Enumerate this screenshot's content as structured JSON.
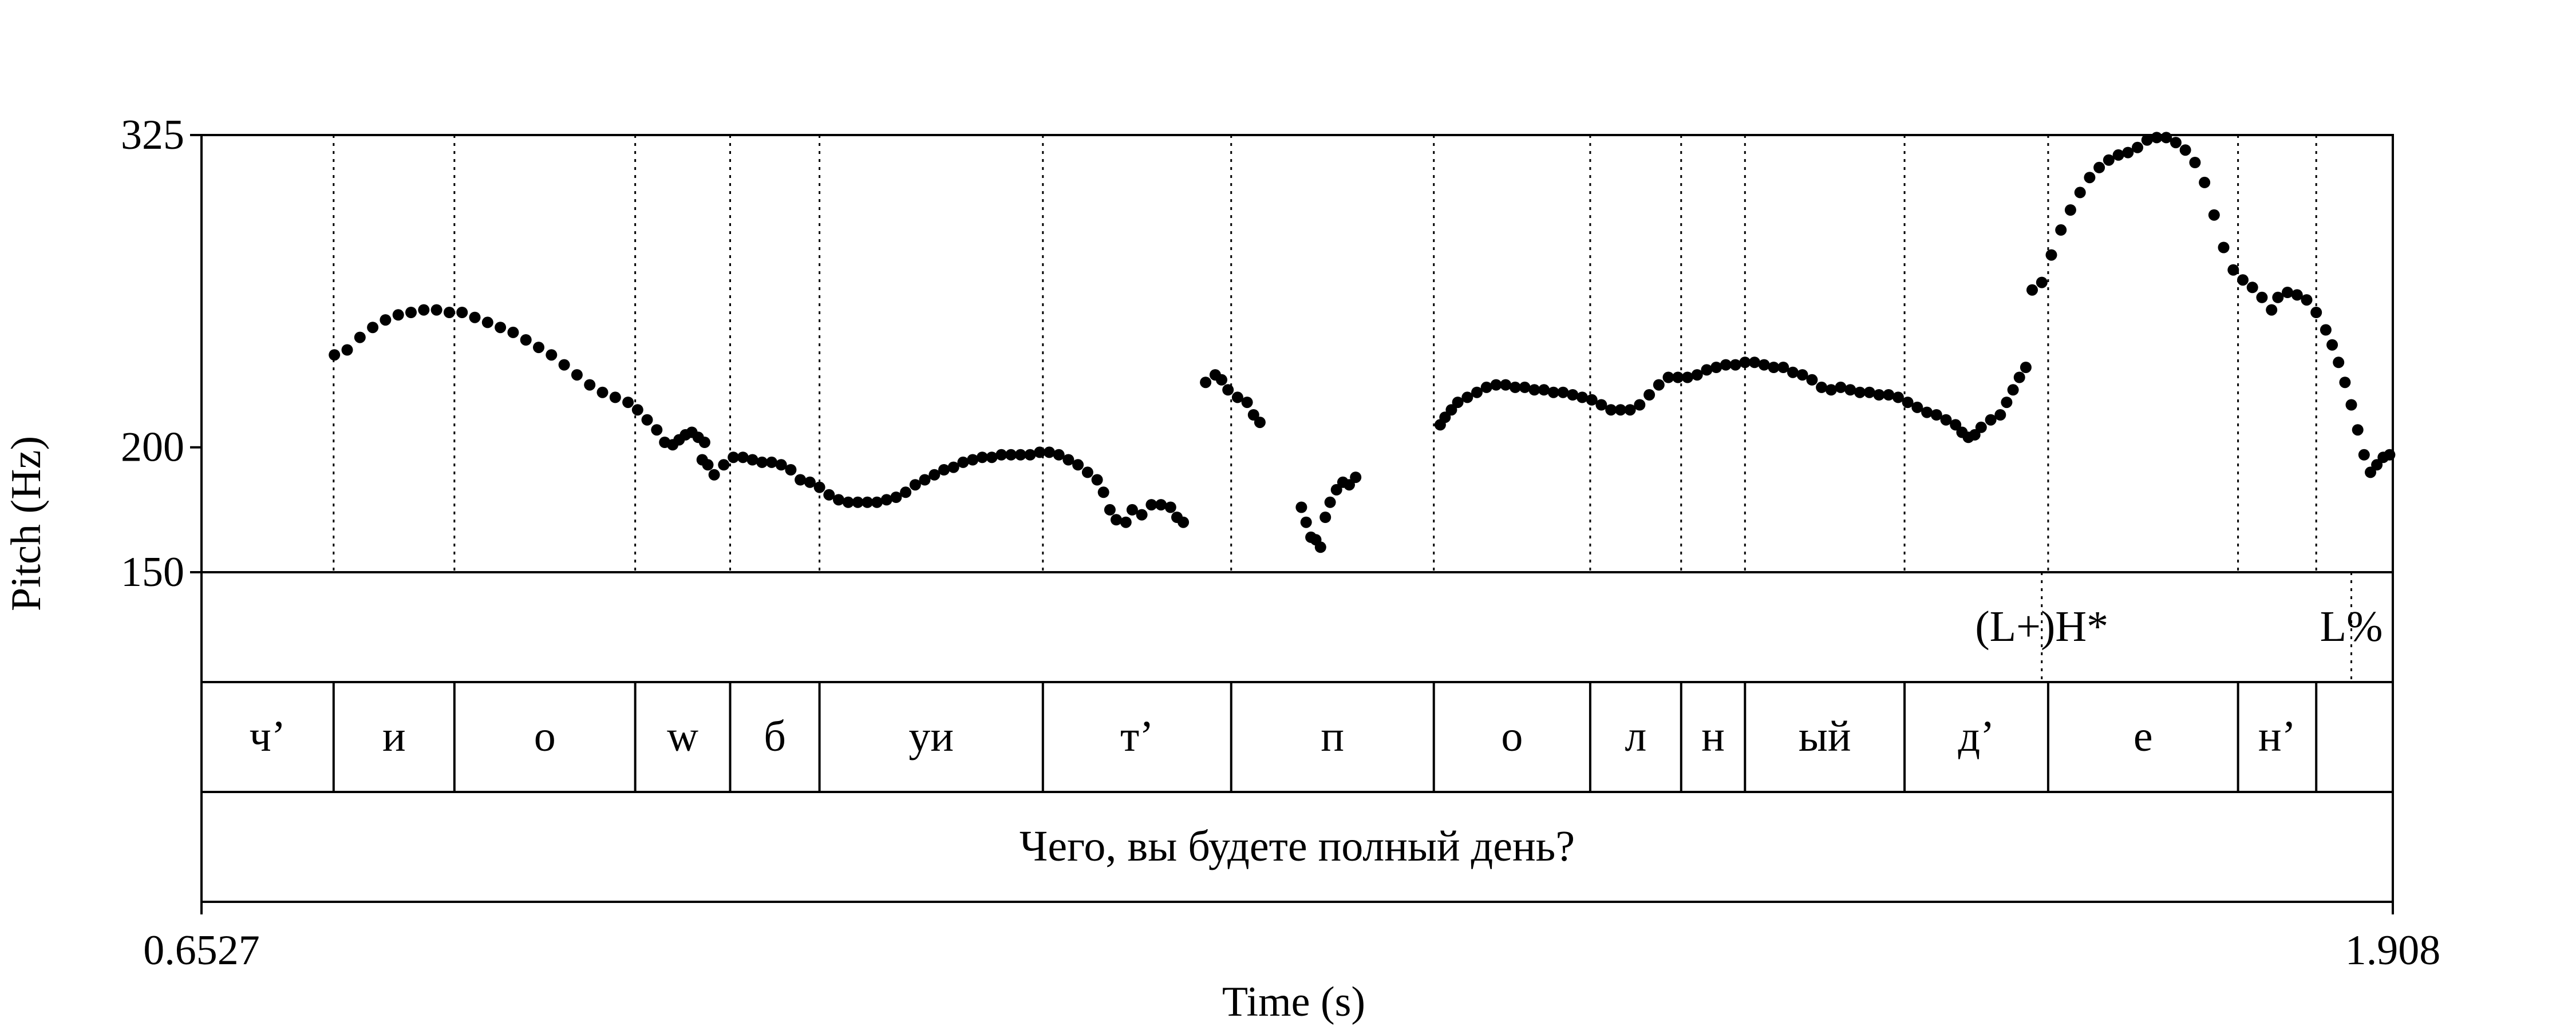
{
  "chart_data": {
    "type": "scatter",
    "title": "",
    "xlabel": "Time (s)",
    "ylabel": "Pitch (Hz)",
    "xlim": [
      0.6527,
      1.908
    ],
    "ylim": [
      150,
      325
    ],
    "x_tick_labels": [
      "0.6527",
      "1.908"
    ],
    "y_ticks": [
      150,
      200,
      325
    ],
    "y_tick_labels": [
      "150",
      "200",
      "325"
    ],
    "grid": false,
    "pitch_segments": [
      [
        [
          0.736,
          237
        ],
        [
          0.744,
          239
        ],
        [
          0.752,
          244
        ],
        [
          0.76,
          248
        ],
        [
          0.768,
          251
        ],
        [
          0.776,
          253
        ],
        [
          0.784,
          254
        ],
        [
          0.792,
          255
        ],
        [
          0.8,
          255
        ],
        [
          0.808,
          254
        ],
        [
          0.816,
          254
        ],
        [
          0.824,
          252
        ],
        [
          0.832,
          250
        ],
        [
          0.84,
          248
        ],
        [
          0.848,
          246
        ],
        [
          0.856,
          243
        ],
        [
          0.864,
          240
        ],
        [
          0.872,
          237
        ],
        [
          0.88,
          233
        ],
        [
          0.888,
          229
        ],
        [
          0.896,
          225
        ],
        [
          0.904,
          222
        ],
        [
          0.912,
          220
        ],
        [
          0.92,
          218
        ],
        [
          0.926,
          215
        ],
        [
          0.932,
          211
        ],
        [
          0.938,
          207
        ],
        [
          0.943,
          202
        ],
        [
          0.948,
          201
        ],
        [
          0.952,
          203
        ],
        [
          0.956,
          205
        ],
        [
          0.96,
          206
        ],
        [
          0.964,
          204
        ],
        [
          0.968,
          202
        ]
      ],
      [
        [
          0.9665,
          195
        ],
        [
          0.97,
          193
        ],
        [
          0.974,
          189
        ],
        [
          0.98,
          193
        ],
        [
          0.986,
          196
        ],
        [
          0.992,
          196
        ],
        [
          0.998,
          195
        ],
        [
          1.004,
          194
        ],
        [
          1.01,
          194
        ],
        [
          1.016,
          193
        ],
        [
          1.022,
          191
        ],
        [
          1.028,
          187
        ],
        [
          1.034,
          186
        ],
        [
          1.04,
          184
        ],
        [
          1.046,
          181
        ],
        [
          1.052,
          179
        ],
        [
          1.058,
          178
        ],
        [
          1.064,
          178
        ],
        [
          1.07,
          178
        ],
        [
          1.076,
          178
        ],
        [
          1.082,
          179
        ],
        [
          1.088,
          180
        ],
        [
          1.094,
          182
        ],
        [
          1.1,
          185
        ],
        [
          1.106,
          187
        ],
        [
          1.112,
          189
        ],
        [
          1.118,
          191
        ],
        [
          1.124,
          192
        ],
        [
          1.13,
          194
        ],
        [
          1.136,
          195
        ],
        [
          1.142,
          196
        ],
        [
          1.148,
          196
        ],
        [
          1.154,
          197
        ],
        [
          1.16,
          197
        ],
        [
          1.166,
          197
        ],
        [
          1.172,
          197
        ],
        [
          1.178,
          198
        ],
        [
          1.184,
          198
        ],
        [
          1.19,
          197
        ],
        [
          1.196,
          195
        ],
        [
          1.202,
          193
        ],
        [
          1.208,
          190
        ],
        [
          1.214,
          187
        ],
        [
          1.218,
          182
        ],
        [
          1.222,
          175
        ],
        [
          1.226,
          171
        ],
        [
          1.232,
          170
        ],
        [
          1.236,
          175
        ],
        [
          1.242,
          173
        ],
        [
          1.248,
          177
        ],
        [
          1.254,
          177
        ],
        [
          1.26,
          176
        ],
        [
          1.264,
          172
        ],
        [
          1.268,
          170
        ]
      ],
      [
        [
          1.282,
          226
        ],
        [
          1.288,
          229
        ],
        [
          1.292,
          227
        ],
        [
          1.296,
          223
        ],
        [
          1.302,
          220
        ],
        [
          1.308,
          218
        ],
        [
          1.312,
          213
        ],
        [
          1.316,
          210
        ]
      ],
      [
        [
          1.342,
          176
        ],
        [
          1.345,
          170
        ],
        [
          1.348,
          164
        ],
        [
          1.351,
          163
        ],
        [
          1.354,
          160
        ],
        [
          1.357,
          172
        ],
        [
          1.36,
          178
        ],
        [
          1.364,
          183
        ],
        [
          1.368,
          186
        ],
        [
          1.372,
          185
        ],
        [
          1.376,
          188
        ]
      ],
      [
        [
          1.429,
          209
        ],
        [
          1.432,
          212
        ],
        [
          1.436,
          215
        ],
        [
          1.44,
          218
        ],
        [
          1.446,
          220
        ],
        [
          1.452,
          222
        ],
        [
          1.458,
          224
        ],
        [
          1.464,
          225
        ],
        [
          1.47,
          225
        ],
        [
          1.476,
          224
        ],
        [
          1.482,
          224
        ],
        [
          1.488,
          223
        ],
        [
          1.494,
          223
        ],
        [
          1.5,
          222
        ],
        [
          1.506,
          222
        ],
        [
          1.512,
          221
        ],
        [
          1.518,
          220
        ],
        [
          1.524,
          219
        ],
        [
          1.53,
          217
        ],
        [
          1.536,
          215
        ],
        [
          1.542,
          215
        ],
        [
          1.548,
          215
        ],
        [
          1.554,
          217
        ],
        [
          1.56,
          221
        ],
        [
          1.566,
          225
        ],
        [
          1.572,
          228
        ],
        [
          1.578,
          228
        ],
        [
          1.584,
          228
        ],
        [
          1.59,
          229
        ],
        [
          1.596,
          231
        ],
        [
          1.602,
          232
        ],
        [
          1.608,
          233
        ],
        [
          1.614,
          233
        ],
        [
          1.62,
          234
        ],
        [
          1.626,
          234
        ],
        [
          1.632,
          233
        ],
        [
          1.638,
          232
        ],
        [
          1.644,
          232
        ],
        [
          1.65,
          230
        ],
        [
          1.656,
          229
        ],
        [
          1.662,
          227
        ],
        [
          1.668,
          224
        ],
        [
          1.674,
          223
        ],
        [
          1.68,
          224
        ],
        [
          1.686,
          223
        ],
        [
          1.692,
          222
        ],
        [
          1.698,
          222
        ],
        [
          1.704,
          221
        ],
        [
          1.71,
          221
        ],
        [
          1.716,
          220
        ],
        [
          1.722,
          218
        ],
        [
          1.728,
          216
        ],
        [
          1.734,
          214
        ],
        [
          1.74,
          213
        ],
        [
          1.746,
          211
        ],
        [
          1.752,
          209
        ],
        [
          1.756,
          206
        ],
        [
          1.76,
          204
        ],
        [
          1.764,
          205
        ],
        [
          1.768,
          208
        ],
        [
          1.774,
          211
        ],
        [
          1.78,
          213
        ],
        [
          1.784,
          218
        ],
        [
          1.788,
          223
        ],
        [
          1.792,
          228
        ],
        [
          1.796,
          232
        ]
      ],
      [
        [
          1.8,
          263
        ],
        [
          1.806,
          266
        ],
        [
          1.812,
          277
        ],
        [
          1.818,
          287
        ],
        [
          1.824,
          295
        ],
        [
          1.83,
          302
        ],
        [
          1.836,
          308
        ],
        [
          1.842,
          312
        ],
        [
          1.848,
          315
        ],
        [
          1.854,
          317
        ],
        [
          1.86,
          318
        ],
        [
          1.866,
          320
        ],
        [
          1.872,
          323
        ],
        [
          1.878,
          324
        ],
        [
          1.884,
          324
        ],
        [
          1.89,
          322
        ],
        [
          1.896,
          319
        ],
        [
          1.902,
          314
        ],
        [
          1.908,
          306
        ],
        [
          1.914,
          293
        ],
        [
          1.92,
          280
        ],
        [
          1.926,
          271
        ],
        [
          1.932,
          267
        ],
        [
          1.938,
          264
        ],
        [
          1.944,
          260
        ],
        [
          1.95,
          255
        ],
        [
          1.954,
          260
        ],
        [
          1.96,
          262
        ],
        [
          1.966,
          261
        ],
        [
          1.972,
          259
        ],
        [
          1.978,
          254
        ],
        [
          1.984,
          247
        ],
        [
          1.988,
          241
        ],
        [
          1.992,
          234
        ],
        [
          1.996,
          226
        ],
        [
          2.0,
          217
        ],
        [
          2.004,
          207
        ],
        [
          2.008,
          197
        ],
        [
          2.012,
          190
        ],
        [
          2.016,
          193
        ],
        [
          2.02,
          196
        ],
        [
          2.024,
          197
        ]
      ]
    ]
  },
  "tiers": [
    {
      "name": "tones",
      "intervals": [],
      "points": [
        {
          "t": 1.806,
          "label": "(L+)H*"
        },
        {
          "t": 2.0,
          "label": "L%"
        }
      ]
    },
    {
      "name": "phones",
      "boundaries": [
        0.7355,
        0.8112,
        0.9245,
        0.984,
        1.04,
        1.18,
        1.298,
        1.425,
        1.523,
        1.58,
        1.62,
        1.72,
        1.81,
        1.929,
        1.978
      ],
      "intervals": [
        {
          "xmin": 0.6527,
          "xmax": 0.7355,
          "label": "ч’"
        },
        {
          "xmin": 0.7355,
          "xmax": 0.8112,
          "label": "и"
        },
        {
          "xmin": 0.8112,
          "xmax": 0.9245,
          "label": "o"
        },
        {
          "xmin": 0.9245,
          "xmax": 0.984,
          "label": "w"
        },
        {
          "xmin": 0.984,
          "xmax": 1.04,
          "label": "б"
        },
        {
          "xmin": 1.04,
          "xmax": 1.18,
          "label": "уи"
        },
        {
          "xmin": 1.18,
          "xmax": 1.298,
          "label": "т’"
        },
        {
          "xmin": 1.298,
          "xmax": 1.425,
          "label": "п"
        },
        {
          "xmin": 1.425,
          "xmax": 1.523,
          "label": "o"
        },
        {
          "xmin": 1.523,
          "xmax": 1.58,
          "label": "л"
        },
        {
          "xmin": 1.58,
          "xmax": 1.62,
          "label": "н"
        },
        {
          "xmin": 1.62,
          "xmax": 1.72,
          "label": "ый"
        },
        {
          "xmin": 1.72,
          "xmax": 1.81,
          "label": "д’"
        },
        {
          "xmin": 1.81,
          "xmax": 1.929,
          "label": "е"
        },
        {
          "xmin": 1.929,
          "xmax": 1.978,
          "label": "н’"
        },
        {
          "xmin": 1.978,
          "xmax": 2.026,
          "label": ""
        }
      ]
    },
    {
      "name": "sentence",
      "intervals": [
        {
          "xmin": 0.6527,
          "xmax": 2.026,
          "label": "Чего, вы будете полный день?"
        }
      ]
    }
  ],
  "timeline_end": 2.026,
  "colors": {
    "ink": "#000000",
    "background": "#ffffff"
  }
}
